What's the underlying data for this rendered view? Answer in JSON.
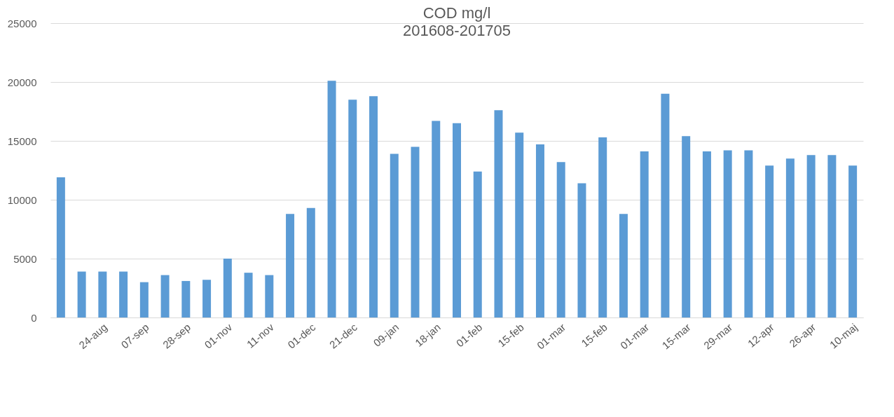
{
  "chart_data": {
    "type": "bar",
    "title": "COD mg/l",
    "subtitle": "201608-201705",
    "categories": [
      null,
      null,
      "24-aug",
      null,
      "07-sep",
      null,
      "28-sep",
      null,
      "01-nov",
      null,
      "11-nov",
      null,
      "01-dec",
      null,
      "21-dec",
      null,
      "09-jan",
      null,
      "18-jan",
      null,
      "01-feb",
      null,
      "15-feb",
      null,
      "01-mar",
      null,
      "15-feb",
      null,
      "01-mar",
      null,
      "15-mar",
      null,
      "29-mar",
      null,
      "12-apr",
      null,
      "26-apr",
      null,
      "10-maj"
    ],
    "values": [
      11900,
      3900,
      3900,
      3900,
      3000,
      3600,
      3100,
      3200,
      5000,
      3800,
      3600,
      8800,
      9300,
      20100,
      18500,
      18800,
      13900,
      14500,
      16700,
      16500,
      12400,
      17600,
      15700,
      14700,
      13200,
      11400,
      15300,
      8800,
      14100,
      19000,
      15400,
      14100,
      14200,
      14200,
      12900,
      13500,
      13800,
      13800,
      12900
    ],
    "color": "#5b9bd5",
    "ylim": [
      0,
      25000
    ],
    "yticks": [
      0,
      5000,
      10000,
      15000,
      20000,
      25000
    ],
    "grid": "y"
  }
}
